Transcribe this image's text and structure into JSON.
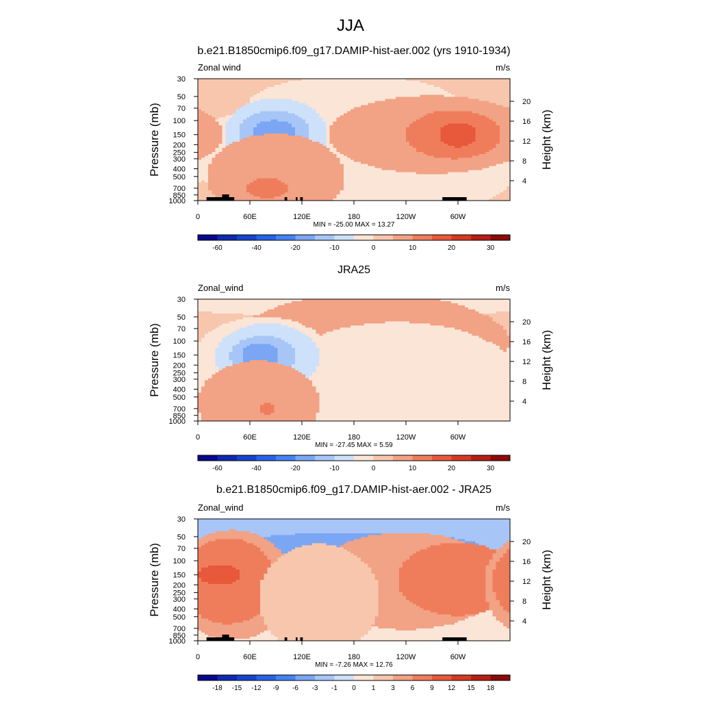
{
  "figure": {
    "title": "JJA"
  },
  "colors": {
    "cmap": [
      "#08088c",
      "#0f2ab0",
      "#1844cc",
      "#2862e6",
      "#4682f0",
      "#7aa6f4",
      "#a7c6f7",
      "#cde1fa",
      "#fbe5d6",
      "#f7c6ad",
      "#f2a285",
      "#ef7d5b",
      "#e8583a",
      "#d43a22",
      "#b61f14",
      "#8c0a08"
    ],
    "land": "#000000",
    "frame": "#000000"
  },
  "chart_data": [
    {
      "type": "heatmap",
      "title": "b.e21.B1850cmip6.f09_g17.DAMIP-hist-aer.002 (yrs 1910-1934)",
      "left_label": "Zonal wind",
      "right_label": "m/s",
      "ylabel": "Pressure (mb)",
      "y2label": "Height (km)",
      "xticks": [
        "0",
        "60E",
        "120E",
        "180",
        "120W",
        "60W"
      ],
      "xtick_lon": [
        0,
        60,
        120,
        180,
        240,
        300
      ],
      "xlim": [
        0,
        360
      ],
      "ylim": [
        1000,
        30
      ],
      "yticks": [
        "30",
        "50",
        "70",
        "100",
        "150",
        "200",
        "250",
        "300",
        "400",
        "500",
        "700",
        "850",
        "1000"
      ],
      "ytick_p": [
        30,
        50,
        70,
        100,
        150,
        200,
        250,
        300,
        400,
        500,
        700,
        850,
        1000
      ],
      "y2ticks": [
        "20",
        "16",
        "12",
        "8",
        "4"
      ],
      "y2tick_km": [
        20,
        16,
        12,
        8,
        4
      ],
      "stats": "MIN = -25.00  MAX =  13.27",
      "min": -25.0,
      "max": 13.27,
      "colorbar_labels": [
        "-60",
        "-40",
        "-20",
        "-10",
        "0",
        "10",
        "20",
        "30"
      ],
      "colorbar_levels": [
        -70,
        -60,
        -50,
        -40,
        -30,
        -20,
        -15,
        -10,
        -5,
        0,
        5,
        10,
        15,
        20,
        25,
        30,
        35
      ],
      "topography": true,
      "field": {
        "background": 2,
        "shapes": [
          {
            "lon": 180,
            "p": 60,
            "dlon": 120,
            "dp": 0.22,
            "v": -5
          },
          {
            "lon": 90,
            "p": 250,
            "dlon": 110,
            "dp": 0.35,
            "v": -5
          },
          {
            "lon": 230,
            "p": 350,
            "dlon": 140,
            "dp": 0.45,
            "v": -5
          },
          {
            "lon": 90,
            "p": 150,
            "dlon": 60,
            "dp": 0.3,
            "v": -10
          },
          {
            "lon": 88,
            "p": 150,
            "dlon": 42,
            "dp": 0.2,
            "v": -15
          },
          {
            "lon": 88,
            "p": 150,
            "dlon": 26,
            "dp": 0.12,
            "v": -20
          },
          {
            "lon": 270,
            "p": 150,
            "dlon": 120,
            "dp": 0.32,
            "v": 5
          },
          {
            "lon": 295,
            "p": 150,
            "dlon": 55,
            "dp": 0.2,
            "v": 10
          },
          {
            "lon": 300,
            "p": 150,
            "dlon": 22,
            "dp": 0.1,
            "v": 15
          },
          {
            "lon": 90,
            "p": 500,
            "dlon": 80,
            "dp": 0.35,
            "v": 5
          },
          {
            "lon": 80,
            "p": 700,
            "dlon": 25,
            "dp": 0.08,
            "v": 10
          }
        ]
      }
    },
    {
      "type": "heatmap",
      "title": "JRA25",
      "left_label": "Zonal_wind",
      "right_label": "m/s",
      "ylabel": "Pressure (mb)",
      "y2label": "Height (km)",
      "xticks": [
        "0",
        "60E",
        "120E",
        "180",
        "120W",
        "60W"
      ],
      "xtick_lon": [
        0,
        60,
        120,
        180,
        240,
        300
      ],
      "xlim": [
        0,
        360
      ],
      "ylim": [
        1000,
        30
      ],
      "yticks": [
        "30",
        "50",
        "70",
        "100",
        "150",
        "200",
        "250",
        "300",
        "400",
        "500",
        "700",
        "850",
        "1000"
      ],
      "ytick_p": [
        30,
        50,
        70,
        100,
        150,
        200,
        250,
        300,
        400,
        500,
        700,
        850,
        1000
      ],
      "y2ticks": [
        "20",
        "16",
        "12",
        "8",
        "4"
      ],
      "y2tick_km": [
        20,
        16,
        12,
        8,
        4
      ],
      "stats": "MIN = -27.45  MAX =   5.59",
      "min": -27.45,
      "max": 5.59,
      "colorbar_labels": [
        "-60",
        "-40",
        "-20",
        "-10",
        "0",
        "10",
        "20",
        "30"
      ],
      "colorbar_levels": [
        -70,
        -60,
        -50,
        -40,
        -30,
        -20,
        -15,
        -10,
        -5,
        0,
        5,
        10,
        15,
        20,
        25,
        30,
        35
      ],
      "topography": false,
      "field": {
        "background": 2,
        "shapes": [
          {
            "lon": 180,
            "p": 33,
            "dlon": 220,
            "dp": 0.12,
            "v": -5
          },
          {
            "lon": 200,
            "p": 110,
            "dlon": 160,
            "dp": 0.42,
            "v": 5
          },
          {
            "lon": 305,
            "p": 150,
            "dlon": 12,
            "dp": 0.05,
            "v": 10
          },
          {
            "lon": 230,
            "p": 400,
            "dlon": 150,
            "dp": 0.55,
            "v": -5
          },
          {
            "lon": 75,
            "p": 170,
            "dlon": 80,
            "dp": 0.35,
            "v": -5
          },
          {
            "lon": 80,
            "p": 160,
            "dlon": 60,
            "dp": 0.28,
            "v": -10
          },
          {
            "lon": 75,
            "p": 155,
            "dlon": 38,
            "dp": 0.17,
            "v": -15
          },
          {
            "lon": 72,
            "p": 150,
            "dlon": 22,
            "dp": 0.1,
            "v": -20
          },
          {
            "lon": 70,
            "p": 600,
            "dlon": 70,
            "dp": 0.35,
            "v": 5
          },
          {
            "lon": 80,
            "p": 700,
            "dlon": 8,
            "dp": 0.05,
            "v": 10
          }
        ]
      }
    },
    {
      "type": "heatmap",
      "title": "b.e21.B1850cmip6.f09_g17.DAMIP-hist-aer.002 - JRA25",
      "left_label": "Zonal_wind",
      "right_label": "m/s",
      "ylabel": "Pressure (mb)",
      "y2label": "Height (km)",
      "xticks": [
        "0",
        "60E",
        "120E",
        "180",
        "120W",
        "60W"
      ],
      "xtick_lon": [
        0,
        60,
        120,
        180,
        240,
        300
      ],
      "xlim": [
        0,
        360
      ],
      "ylim": [
        1000,
        30
      ],
      "yticks": [
        "30",
        "50",
        "70",
        "100",
        "150",
        "200",
        "250",
        "300",
        "400",
        "500",
        "700",
        "850",
        "1000"
      ],
      "ytick_p": [
        30,
        50,
        70,
        100,
        150,
        200,
        250,
        300,
        400,
        500,
        700,
        850,
        1000
      ],
      "y2ticks": [
        "20",
        "16",
        "12",
        "8",
        "4"
      ],
      "y2tick_km": [
        20,
        16,
        12,
        8,
        4
      ],
      "stats": "MIN =  -7.26  MAX =  12.76",
      "min": -7.26,
      "max": 12.76,
      "colorbar_labels": [
        "-18",
        "-15",
        "-12",
        "-9",
        "-6",
        "-3",
        "-1",
        "0",
        "1",
        "3",
        "6",
        "9",
        "12",
        "15",
        "18"
      ],
      "colorbar_levels": [
        -21,
        -18,
        -15,
        -12,
        -9,
        -6,
        -3,
        -1,
        0,
        1,
        3,
        6,
        9,
        12,
        15,
        18,
        21
      ],
      "topography": true,
      "field": {
        "background": 0.5,
        "shapes": [
          {
            "lon": 180,
            "p": 35,
            "dlon": 600,
            "dp": 0.1,
            "v": 3
          },
          {
            "lon": 180,
            "p": 70,
            "dlon": 600,
            "dp": 0.25,
            "v": -3
          },
          {
            "lon": 180,
            "p": 70,
            "dlon": 150,
            "dp": 0.13,
            "v": -6
          },
          {
            "lon": 240,
            "p": 180,
            "dlon": 110,
            "dp": 0.4,
            "v": 3
          },
          {
            "lon": 300,
            "p": 170,
            "dlon": 70,
            "dp": 0.3,
            "v": 6
          },
          {
            "lon": 40,
            "p": 200,
            "dlon": 70,
            "dp": 0.45,
            "v": 3
          },
          {
            "lon": 35,
            "p": 180,
            "dlon": 55,
            "dp": 0.35,
            "v": 6
          },
          {
            "lon": 25,
            "p": 150,
            "dlon": 25,
            "dp": 0.08,
            "v": 9
          },
          {
            "lon": 140,
            "p": 300,
            "dlon": 70,
            "dp": 0.45,
            "v": 1
          }
        ]
      }
    }
  ]
}
